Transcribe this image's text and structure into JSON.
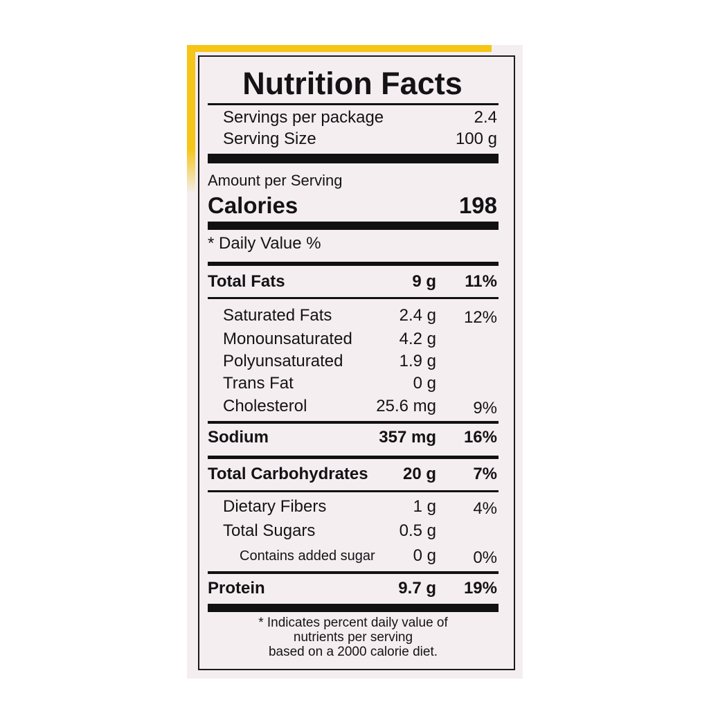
{
  "title": "Nutrition Facts",
  "servings": [
    {
      "label": "Servings per package",
      "value": "2.4"
    },
    {
      "label": "Serving Size",
      "value": "100 g"
    }
  ],
  "amount_label": "Amount per Serving",
  "calories": {
    "label": "Calories",
    "value": "198"
  },
  "daily_value_header": "* Daily Value %",
  "nutrients": [
    {
      "name": "Total Fats",
      "amount": "9 g",
      "dv": "11%",
      "sub": [
        {
          "name": "Saturated Fats",
          "amount": "2.4 g",
          "dv": "12%"
        },
        {
          "name": "Monounsaturated",
          "amount": "4.2 g"
        },
        {
          "name": "Polyunsaturated",
          "amount": "1.9 g"
        },
        {
          "name": "Trans Fat",
          "amount": "0 g"
        },
        {
          "name": "Cholesterol",
          "amount": "25.6 mg",
          "dv": "9%"
        }
      ]
    },
    {
      "name": "Sodium",
      "amount": "357 mg",
      "dv": "16%"
    },
    {
      "name": "Total Carbohydrates",
      "amount": "20 g",
      "dv": "7%",
      "sub": [
        {
          "name": "Dietary Fibers",
          "amount": "1 g",
          "dv": "4%"
        },
        {
          "name": "Total Sugars",
          "amount": "0.5 g",
          "sub": [
            {
              "name": "Contains added sugar",
              "amount": "0 g",
              "dv": "0%"
            }
          ]
        }
      ]
    },
    {
      "name": "Protein",
      "amount": "9.7 g",
      "dv": "19%"
    }
  ],
  "footnote": [
    "* Indicates percent daily value of",
    "nutrients per serving",
    "based on a 2000 calorie diet."
  ]
}
